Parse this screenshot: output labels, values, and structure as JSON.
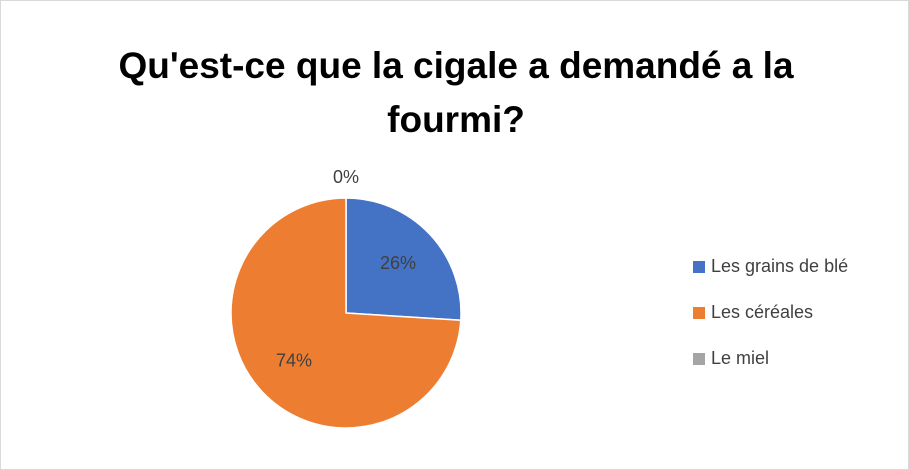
{
  "chart_data": {
    "type": "pie",
    "title": "Qu'est-ce que la cigale a demandé a la fourmi?",
    "categories": [
      "Les grains de blé",
      "Les céréales",
      "Le miel"
    ],
    "values": [
      26,
      74,
      0
    ],
    "value_labels": [
      "26%",
      "74%",
      "0%"
    ],
    "colors": [
      "#4472c4",
      "#ed7d31",
      "#a5a5a5"
    ],
    "legend": "right"
  }
}
